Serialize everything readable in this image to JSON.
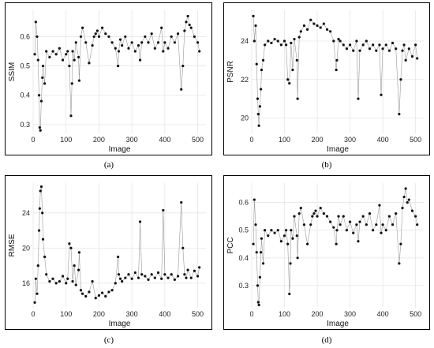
{
  "figure": {
    "captions": [
      "(a)",
      "(b)",
      "(c)",
      "(d)"
    ]
  },
  "chart_data": [
    {
      "type": "scatter",
      "connected": true,
      "xlabel": "Image",
      "ylabel": "SSIM",
      "xlim": [
        0,
        525
      ],
      "ylim": [
        0.27,
        0.69
      ],
      "xticks": [
        0,
        100,
        200,
        300,
        400,
        500
      ],
      "yticks": [
        0.3,
        0.4,
        0.5,
        0.6
      ],
      "ytick_labels": [
        "0.3",
        "0.4",
        "0.5",
        "0.6"
      ],
      "grid": true,
      "x": [
        5,
        8,
        12,
        15,
        18,
        20,
        22,
        25,
        28,
        30,
        35,
        40,
        50,
        60,
        70,
        80,
        90,
        100,
        105,
        110,
        115,
        118,
        120,
        125,
        130,
        138,
        140,
        145,
        150,
        160,
        170,
        180,
        185,
        190,
        195,
        200,
        210,
        220,
        230,
        240,
        250,
        258,
        260,
        265,
        270,
        280,
        290,
        300,
        310,
        320,
        325,
        330,
        340,
        350,
        360,
        370,
        380,
        390,
        395,
        400,
        410,
        420,
        430,
        440,
        450,
        455,
        460,
        465,
        470,
        475,
        480,
        490,
        500,
        505
      ],
      "y": [
        0.54,
        0.65,
        0.6,
        0.52,
        0.4,
        0.29,
        0.28,
        0.38,
        0.46,
        0.5,
        0.44,
        0.55,
        0.53,
        0.55,
        0.54,
        0.56,
        0.52,
        0.54,
        0.55,
        0.5,
        0.33,
        0.44,
        0.55,
        0.52,
        0.58,
        0.53,
        0.45,
        0.6,
        0.63,
        0.58,
        0.51,
        0.57,
        0.6,
        0.61,
        0.62,
        0.6,
        0.63,
        0.61,
        0.6,
        0.58,
        0.56,
        0.5,
        0.55,
        0.59,
        0.57,
        0.6,
        0.56,
        0.58,
        0.55,
        0.57,
        0.52,
        0.58,
        0.6,
        0.58,
        0.61,
        0.56,
        0.58,
        0.63,
        0.55,
        0.58,
        0.56,
        0.6,
        0.58,
        0.61,
        0.42,
        0.5,
        0.62,
        0.65,
        0.67,
        0.64,
        0.63,
        0.6,
        0.58,
        0.55
      ]
    },
    {
      "type": "scatter",
      "connected": true,
      "xlabel": "Image",
      "ylabel": "PSNR",
      "xlim": [
        0,
        525
      ],
      "ylim": [
        19.2,
        25.6
      ],
      "xticks": [
        0,
        100,
        200,
        300,
        400,
        500
      ],
      "yticks": [
        20,
        22,
        24
      ],
      "ytick_labels": [
        "20",
        "22",
        "24"
      ],
      "grid": true,
      "x": [
        5,
        8,
        12,
        15,
        18,
        20,
        22,
        25,
        28,
        30,
        35,
        40,
        50,
        60,
        70,
        80,
        90,
        100,
        105,
        110,
        115,
        120,
        125,
        130,
        138,
        140,
        145,
        150,
        160,
        170,
        180,
        190,
        200,
        210,
        220,
        230,
        240,
        250,
        258,
        260,
        265,
        270,
        280,
        290,
        300,
        310,
        320,
        325,
        330,
        340,
        350,
        360,
        370,
        380,
        390,
        395,
        400,
        410,
        420,
        430,
        440,
        450,
        455,
        460,
        465,
        470,
        480,
        490,
        500,
        505
      ],
      "y": [
        25.3,
        24.0,
        24.8,
        22.8,
        21.0,
        20.2,
        19.6,
        20.6,
        21.5,
        22.5,
        23.0,
        23.8,
        24.0,
        23.9,
        24.1,
        24.0,
        23.8,
        24.0,
        23.8,
        22.0,
        21.8,
        23.9,
        22.5,
        24.1,
        23.0,
        21.0,
        24.2,
        24.5,
        24.8,
        24.6,
        25.1,
        24.9,
        24.8,
        24.7,
        24.9,
        24.6,
        24.5,
        24.0,
        22.5,
        23.0,
        24.1,
        24.0,
        23.8,
        23.6,
        23.8,
        23.5,
        24.0,
        21.0,
        23.5,
        23.8,
        24.0,
        23.6,
        23.8,
        23.5,
        23.8,
        21.2,
        23.6,
        23.8,
        23.5,
        23.9,
        23.6,
        20.2,
        22.0,
        23.5,
        23.8,
        23.0,
        23.6,
        23.2,
        23.8,
        23.1
      ]
    },
    {
      "type": "scatter",
      "connected": true,
      "xlabel": "Image",
      "ylabel": "RMSE",
      "xlim": [
        0,
        525
      ],
      "ylim": [
        13.2,
        27.4
      ],
      "xticks": [
        0,
        100,
        200,
        300,
        400,
        500
      ],
      "yticks": [
        16,
        20,
        24
      ],
      "ytick_labels": [
        "16",
        "20",
        "24"
      ],
      "grid": true,
      "x": [
        5,
        8,
        12,
        15,
        18,
        20,
        22,
        25,
        28,
        30,
        35,
        40,
        50,
        60,
        70,
        80,
        90,
        100,
        105,
        110,
        115,
        120,
        125,
        130,
        138,
        140,
        145,
        150,
        160,
        170,
        180,
        190,
        200,
        210,
        220,
        230,
        240,
        250,
        258,
        260,
        265,
        270,
        280,
        290,
        300,
        310,
        320,
        325,
        330,
        340,
        350,
        360,
        370,
        380,
        390,
        395,
        400,
        410,
        420,
        430,
        440,
        450,
        455,
        460,
        465,
        470,
        480,
        490,
        500,
        505
      ],
      "y": [
        13.8,
        16.5,
        14.8,
        18.0,
        22.0,
        24.5,
        26.5,
        27.0,
        24.0,
        21.0,
        19.0,
        17.0,
        16.2,
        16.5,
        16.0,
        16.2,
        16.8,
        16.0,
        16.5,
        20.5,
        20.0,
        16.2,
        18.0,
        15.8,
        17.5,
        19.5,
        15.2,
        14.8,
        14.5,
        15.0,
        16.2,
        14.3,
        14.6,
        14.9,
        14.5,
        15.0,
        15.2,
        16.0,
        19.0,
        17.0,
        16.5,
        16.2,
        16.6,
        17.0,
        16.5,
        17.2,
        16.6,
        23.0,
        17.0,
        16.8,
        16.4,
        17.0,
        16.6,
        17.2,
        16.5,
        24.3,
        17.0,
        16.6,
        17.0,
        16.4,
        16.8,
        25.2,
        20.0,
        17.0,
        16.6,
        17.5,
        16.6,
        17.4,
        16.8,
        17.8
      ]
    },
    {
      "type": "scatter",
      "connected": true,
      "xlabel": "Image",
      "ylabel": "PCC",
      "xlim": [
        0,
        525
      ],
      "ylim": [
        0.22,
        0.67
      ],
      "xticks": [
        0,
        100,
        200,
        300,
        400,
        500
      ],
      "yticks": [
        0.3,
        0.4,
        0.5,
        0.6
      ],
      "ytick_labels": [
        "0.3",
        "0.4",
        "0.5",
        "0.6"
      ],
      "grid": true,
      "x": [
        5,
        8,
        12,
        15,
        18,
        20,
        22,
        25,
        28,
        30,
        35,
        40,
        50,
        60,
        70,
        80,
        90,
        100,
        105,
        110,
        115,
        118,
        120,
        125,
        130,
        138,
        140,
        145,
        150,
        160,
        170,
        180,
        185,
        190,
        195,
        200,
        210,
        220,
        230,
        240,
        250,
        258,
        260,
        265,
        270,
        280,
        290,
        300,
        310,
        320,
        325,
        330,
        340,
        350,
        360,
        370,
        380,
        390,
        395,
        400,
        410,
        420,
        430,
        440,
        450,
        455,
        460,
        465,
        470,
        475,
        480,
        490,
        500,
        505
      ],
      "y": [
        0.45,
        0.61,
        0.52,
        0.42,
        0.3,
        0.24,
        0.23,
        0.33,
        0.42,
        0.47,
        0.38,
        0.5,
        0.48,
        0.5,
        0.49,
        0.5,
        0.46,
        0.48,
        0.5,
        0.45,
        0.27,
        0.38,
        0.5,
        0.47,
        0.55,
        0.48,
        0.4,
        0.56,
        0.58,
        0.52,
        0.45,
        0.52,
        0.55,
        0.56,
        0.57,
        0.55,
        0.58,
        0.56,
        0.55,
        0.53,
        0.51,
        0.45,
        0.5,
        0.55,
        0.52,
        0.55,
        0.5,
        0.53,
        0.49,
        0.52,
        0.46,
        0.53,
        0.55,
        0.52,
        0.56,
        0.5,
        0.52,
        0.59,
        0.49,
        0.52,
        0.5,
        0.55,
        0.52,
        0.56,
        0.38,
        0.45,
        0.58,
        0.62,
        0.65,
        0.6,
        0.61,
        0.57,
        0.55,
        0.52
      ]
    }
  ]
}
